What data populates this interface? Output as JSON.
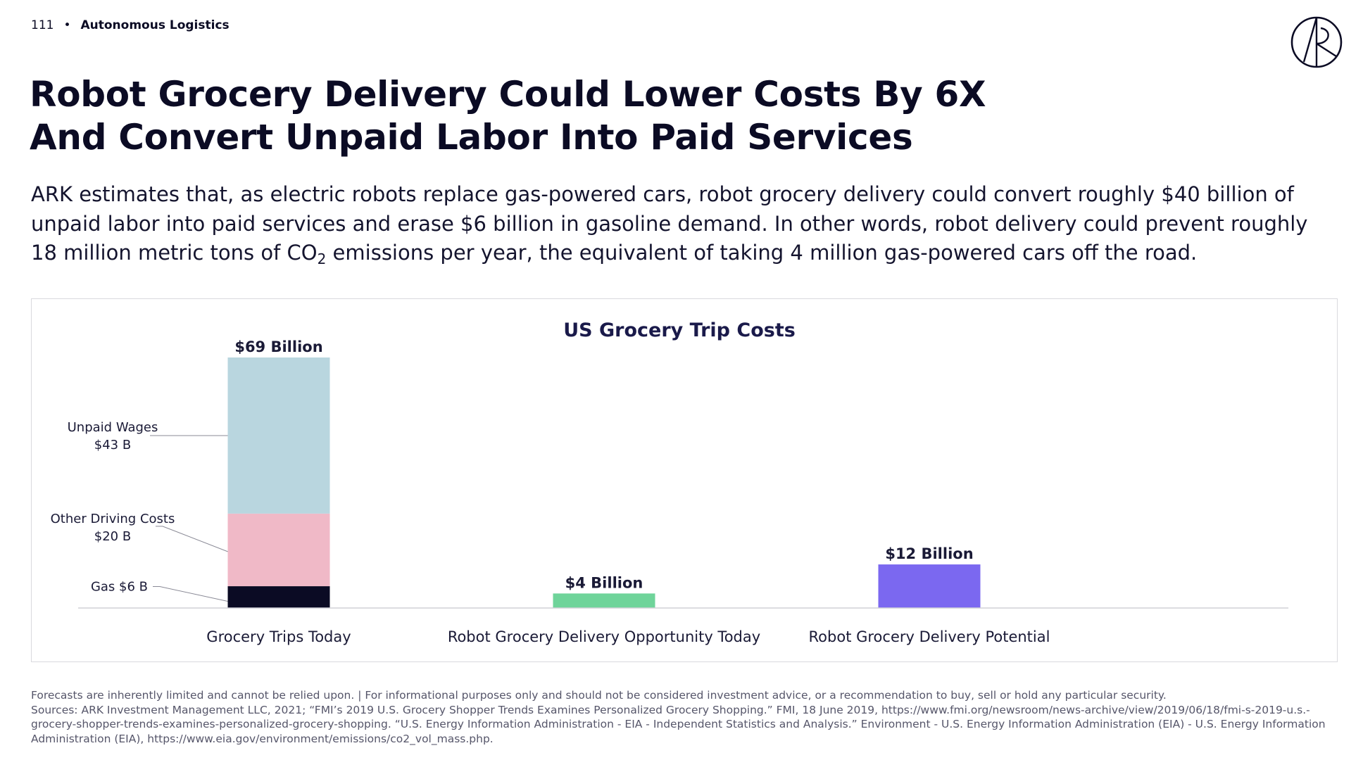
{
  "header": {
    "page_number": "111",
    "separator": "•",
    "section": "Autonomous Logistics"
  },
  "title": {
    "line1": "Robot Grocery Delivery Could Lower Costs By 6X",
    "line2": "And Convert Unpaid Labor Into Paid Services"
  },
  "description": {
    "part1": "ARK estimates that, as electric robots replace gas-powered cars, robot grocery delivery could convert roughly $40 billion of unpaid labor into paid services and erase $6 billion in gasoline demand. In other words, robot delivery could prevent roughly 18 million metric tons of CO",
    "subscript": "2",
    "part2": " emissions per year, the equivalent of taking 4 million gas-powered cars off the road."
  },
  "chart_data": {
    "type": "bar",
    "title": "US Grocery Trip Costs",
    "xlabel": "",
    "ylabel": "",
    "ylim": [
      0,
      69
    ],
    "grid": false,
    "legend": "none",
    "categories": [
      "Grocery Trips Today",
      "Robot Grocery Delivery Opportunity Today",
      "Robot Grocery Delivery Potential"
    ],
    "totals": [
      69,
      4,
      12
    ],
    "total_labels": [
      "$69 Billion",
      "$4 Billion",
      "$12 Billion"
    ],
    "stacked_segments": [
      {
        "category": "Grocery Trips Today",
        "label": "Gas",
        "value_label": "$6 B",
        "value": 6,
        "color": "#0b0b24"
      },
      {
        "category": "Grocery Trips Today",
        "label": "Other Driving Costs",
        "value_label": "$20 B",
        "value": 20,
        "color": "#f0b9c7"
      },
      {
        "category": "Grocery Trips Today",
        "label": "Unpaid Wages",
        "value_label": "$43 B",
        "value": 43,
        "color": "#b9d6df"
      }
    ],
    "bar_colors": [
      "",
      "#6fd49a",
      "#7b68f0"
    ]
  },
  "footer": {
    "disclaimer": "Forecasts are inherently limited and cannot be relied upon. | For informational purposes only and should not be considered investment advice, or a recommendation to buy, sell or hold any particular security.",
    "sources": "Sources: ARK Investment Management LLC, 2021; “FMI’s 2019 U.S. Grocery Shopper Trends Examines Personalized Grocery Shopping.” FMI, 18 June 2019, https://www.fmi.org/newsroom/news-archive/view/2019/06/18/fmi-s-2019-u.s.-grocery-shopper-trends-examines-personalized-grocery-shopping. “U.S. Energy Information Administration - EIA - Independent Statistics and Analysis.” Environment - U.S. Energy Information Administration (EIA) - U.S. Energy Information Administration (EIA), https://www.eia.gov/environment/emissions/co2_vol_mass.php."
  },
  "logo": {
    "icon": "ark-logo-icon"
  }
}
